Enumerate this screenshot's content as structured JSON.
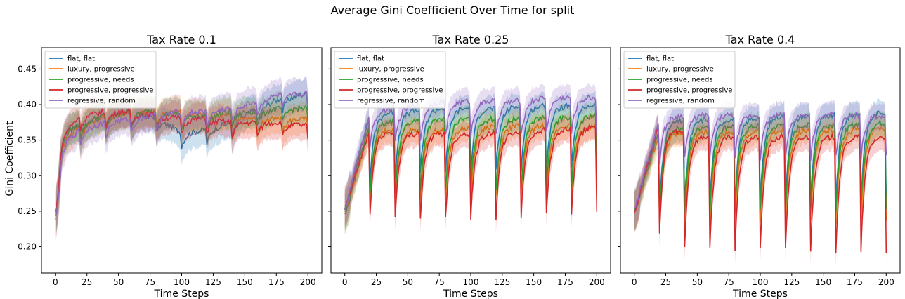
{
  "suptitle": "Average Gini Coefficient Over Time for split",
  "ylabel": "Gini Coefficient",
  "legend_entries": [
    {
      "label": "flat, flat",
      "color": "#1f77b4"
    },
    {
      "label": "luxury, progressive",
      "color": "#ff7f0e"
    },
    {
      "label": "progressive, needs",
      "color": "#2ca02c"
    },
    {
      "label": "progressive, progressive",
      "color": "#d62728"
    },
    {
      "label": "regressive, random",
      "color": "#9467bd"
    }
  ],
  "chart_data": [
    {
      "type": "line",
      "title": "Tax Rate 0.1",
      "xlabel": "Time Steps",
      "ylabel": "Gini Coefficient",
      "xlim": [
        -11,
        211
      ],
      "ylim": [
        0.163,
        0.48
      ],
      "xticks": [
        0,
        25,
        50,
        75,
        100,
        125,
        150,
        175,
        200
      ],
      "yticks": [
        0.2,
        0.25,
        0.3,
        0.35,
        0.4,
        0.45
      ],
      "legend_position": "top-left",
      "grid": false,
      "shaded_band": "variability band around each series",
      "series": [
        {
          "name": "flat, flat",
          "color": "#1f77b4",
          "x": [
            0,
            5,
            10,
            20,
            40,
            60,
            80,
            100,
            120,
            140,
            160,
            180,
            200
          ],
          "y": [
            0.245,
            0.345,
            0.365,
            0.372,
            0.385,
            0.388,
            0.382,
            0.36,
            0.365,
            0.375,
            0.395,
            0.41,
            0.415
          ]
        },
        {
          "name": "luxury, progressive",
          "color": "#ff7f0e",
          "x": [
            0,
            5,
            10,
            20,
            40,
            60,
            80,
            100,
            120,
            140,
            160,
            180,
            200
          ],
          "y": [
            0.24,
            0.34,
            0.355,
            0.37,
            0.385,
            0.39,
            0.39,
            0.39,
            0.385,
            0.385,
            0.38,
            0.38,
            0.38
          ]
        },
        {
          "name": "progressive, needs",
          "color": "#2ca02c",
          "x": [
            0,
            5,
            10,
            20,
            40,
            60,
            80,
            100,
            120,
            140,
            160,
            180,
            200
          ],
          "y": [
            0.245,
            0.345,
            0.36,
            0.375,
            0.385,
            0.39,
            0.39,
            0.385,
            0.385,
            0.39,
            0.39,
            0.395,
            0.395
          ]
        },
        {
          "name": "progressive, progressive",
          "color": "#d62728",
          "x": [
            0,
            5,
            10,
            20,
            40,
            60,
            80,
            100,
            120,
            140,
            160,
            180,
            200
          ],
          "y": [
            0.25,
            0.35,
            0.365,
            0.385,
            0.39,
            0.39,
            0.385,
            0.38,
            0.38,
            0.375,
            0.375,
            0.375,
            0.37
          ]
        },
        {
          "name": "regressive, random",
          "color": "#9467bd",
          "x": [
            0,
            5,
            10,
            20,
            40,
            60,
            80,
            100,
            120,
            140,
            160,
            180,
            200
          ],
          "y": [
            0.24,
            0.33,
            0.35,
            0.365,
            0.375,
            0.38,
            0.385,
            0.39,
            0.39,
            0.395,
            0.405,
            0.415,
            0.415
          ]
        }
      ]
    },
    {
      "type": "line",
      "title": "Tax Rate 0.25",
      "xlabel": "Time Steps",
      "ylabel": "",
      "xlim": [
        -11,
        211
      ],
      "ylim": [
        0.163,
        0.48
      ],
      "xticks": [
        0,
        25,
        50,
        75,
        100,
        125,
        150,
        175,
        200
      ],
      "yticks": [
        0.2,
        0.25,
        0.3,
        0.35,
        0.4,
        0.45
      ],
      "legend_position": "top-left",
      "grid": false,
      "shaded_band": "variability band around each series",
      "series": [
        {
          "name": "flat, flat",
          "color": "#1f77b4",
          "x": [
            0,
            20,
            39,
            59,
            79,
            99,
            119,
            139,
            159,
            179,
            199
          ],
          "y": [
            0.255,
            0.385,
            0.39,
            0.392,
            0.395,
            0.395,
            0.395,
            0.398,
            0.398,
            0.398,
            0.4
          ]
        },
        {
          "name": "luxury, progressive",
          "color": "#ff7f0e",
          "x": [
            0,
            20,
            39,
            59,
            79,
            99,
            119,
            139,
            159,
            179,
            199
          ],
          "y": [
            0.25,
            0.365,
            0.365,
            0.365,
            0.365,
            0.368,
            0.37,
            0.37,
            0.37,
            0.37,
            0.37
          ]
        },
        {
          "name": "progressive, needs",
          "color": "#2ca02c",
          "x": [
            0,
            20,
            39,
            59,
            79,
            99,
            119,
            139,
            159,
            179,
            199
          ],
          "y": [
            0.245,
            0.375,
            0.375,
            0.378,
            0.38,
            0.38,
            0.38,
            0.38,
            0.382,
            0.383,
            0.385
          ]
        },
        {
          "name": "progressive, progressive",
          "color": "#d62728",
          "x": [
            0,
            20,
            39,
            59,
            79,
            99,
            119,
            139,
            159,
            179,
            199
          ],
          "y": [
            0.255,
            0.365,
            0.36,
            0.36,
            0.36,
            0.36,
            0.36,
            0.362,
            0.365,
            0.365,
            0.37
          ]
        },
        {
          "name": "regressive, random",
          "color": "#9467bd",
          "x": [
            0,
            20,
            39,
            59,
            79,
            99,
            119,
            139,
            159,
            179,
            199
          ],
          "y": [
            0.255,
            0.39,
            0.395,
            0.4,
            0.405,
            0.405,
            0.405,
            0.405,
            0.41,
            0.41,
            0.41
          ]
        }
      ]
    },
    {
      "type": "line",
      "title": "Tax Rate 0.4",
      "xlabel": "Time Steps",
      "ylabel": "",
      "xlim": [
        -11,
        211
      ],
      "ylim": [
        0.163,
        0.48
      ],
      "xticks": [
        0,
        25,
        50,
        75,
        100,
        125,
        150,
        175,
        200
      ],
      "yticks": [
        0.2,
        0.25,
        0.3,
        0.35,
        0.4,
        0.45
      ],
      "legend_position": "top-left",
      "grid": false,
      "shaded_band": "variability band around each series",
      "series": [
        {
          "name": "flat, flat",
          "color": "#1f77b4",
          "x": [
            0,
            20,
            39,
            59,
            79,
            99,
            119,
            139,
            159,
            179,
            199
          ],
          "y": [
            0.25,
            0.375,
            0.378,
            0.38,
            0.38,
            0.382,
            0.385,
            0.385,
            0.385,
            0.388,
            0.39
          ]
        },
        {
          "name": "luxury, progressive",
          "color": "#ff7f0e",
          "x": [
            0,
            20,
            39,
            59,
            79,
            99,
            119,
            139,
            159,
            179,
            199
          ],
          "y": [
            0.25,
            0.36,
            0.36,
            0.362,
            0.362,
            0.363,
            0.365,
            0.365,
            0.365,
            0.366,
            0.368
          ]
        },
        {
          "name": "progressive, needs",
          "color": "#2ca02c",
          "x": [
            0,
            20,
            39,
            59,
            79,
            99,
            119,
            139,
            159,
            179,
            199
          ],
          "y": [
            0.25,
            0.365,
            0.368,
            0.37,
            0.37,
            0.37,
            0.372,
            0.372,
            0.372,
            0.373,
            0.375
          ]
        },
        {
          "name": "progressive, progressive",
          "color": "#d62728",
          "x": [
            0,
            20,
            39,
            59,
            79,
            99,
            119,
            139,
            159,
            179,
            199
          ],
          "y": [
            0.25,
            0.375,
            0.36,
            0.355,
            0.355,
            0.355,
            0.355,
            0.355,
            0.355,
            0.355,
            0.355
          ]
        },
        {
          "name": "regressive, random",
          "color": "#9467bd",
          "x": [
            0,
            20,
            39,
            59,
            79,
            99,
            119,
            139,
            159,
            179,
            199
          ],
          "y": [
            0.255,
            0.38,
            0.385,
            0.385,
            0.385,
            0.385,
            0.385,
            0.385,
            0.385,
            0.385,
            0.385
          ]
        }
      ]
    }
  ]
}
